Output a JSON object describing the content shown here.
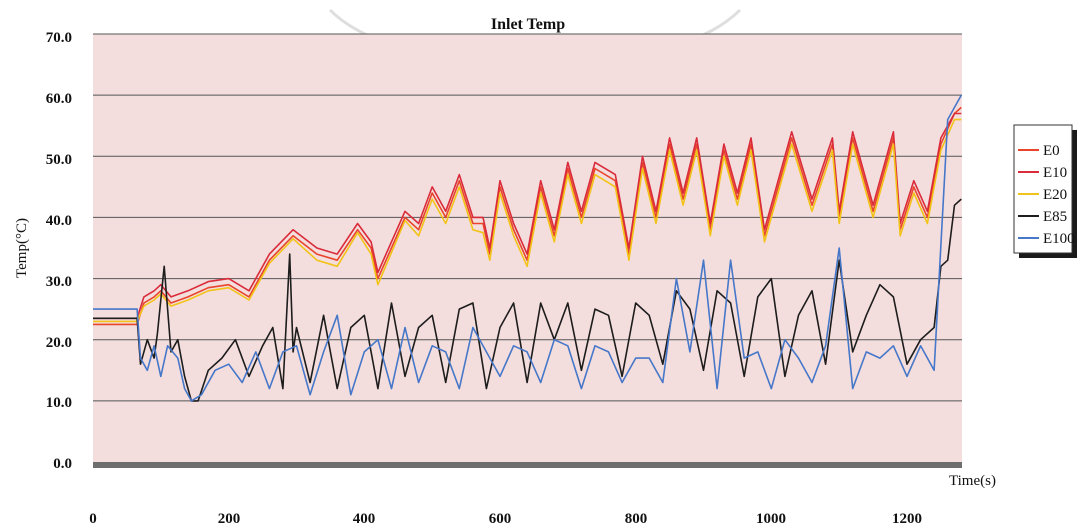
{
  "colors": {
    "plot_bg": "#f4dedd",
    "grid": "#555555",
    "baseline": "#6e6e6e",
    "E0": "#e8452c",
    "E10": "#d92b3a",
    "E20": "#f2c318",
    "E85": "#1d1d1d",
    "E100": "#4677c9"
  },
  "chart_data": {
    "type": "line",
    "title": "Inlet Temp",
    "xlabel": "Time(s)",
    "ylabel": "Temp(°C)",
    "xlim": [
      0,
      1280
    ],
    "ylim": [
      0,
      70
    ],
    "x_ticks": [
      "0",
      "200",
      "400",
      "600",
      "800",
      "1000",
      "1200"
    ],
    "y_ticks": [
      "0.0",
      "10.0",
      "20.0",
      "30.0",
      "40.0",
      "50.0",
      "60.0",
      "70.0"
    ],
    "grid": "horizontal",
    "legend": "right",
    "series": [
      {
        "name": "E0",
        "x": [
          0,
          65,
          75,
          90,
          100,
          115,
          140,
          170,
          200,
          230,
          260,
          295,
          330,
          360,
          390,
          410,
          420,
          460,
          480,
          500,
          520,
          540,
          560,
          575,
          585,
          600,
          620,
          640,
          660,
          680,
          700,
          720,
          740,
          770,
          790,
          810,
          830,
          850,
          870,
          890,
          910,
          930,
          950,
          970,
          990,
          1010,
          1030,
          1060,
          1090,
          1100,
          1120,
          1150,
          1180,
          1190,
          1210,
          1230,
          1250,
          1270,
          1280
        ],
        "values": [
          22.5,
          22.5,
          26,
          27,
          28,
          26,
          27,
          28.5,
          29,
          27,
          33,
          37,
          34,
          33,
          38,
          35,
          30,
          40,
          38,
          44,
          40,
          46,
          39,
          39,
          34,
          45,
          38,
          33,
          45,
          37,
          48,
          40,
          48,
          46,
          34,
          49,
          40,
          52,
          43,
          52,
          38,
          51,
          43,
          52,
          37,
          45,
          53,
          42,
          52,
          40,
          53,
          41,
          53,
          38,
          45,
          40,
          52,
          57,
          58
        ]
      },
      {
        "name": "E10",
        "x": [
          0,
          65,
          75,
          90,
          100,
          115,
          140,
          170,
          200,
          230,
          260,
          295,
          330,
          360,
          390,
          410,
          420,
          460,
          480,
          500,
          520,
          540,
          560,
          575,
          585,
          600,
          620,
          640,
          660,
          680,
          700,
          720,
          740,
          770,
          790,
          810,
          830,
          850,
          870,
          890,
          910,
          930,
          950,
          970,
          990,
          1010,
          1030,
          1060,
          1090,
          1100,
          1120,
          1150,
          1180,
          1190,
          1210,
          1230,
          1250,
          1270,
          1280
        ],
        "values": [
          23.5,
          23.5,
          27,
          28,
          29,
          27,
          28,
          29.5,
          30,
          28,
          34,
          38,
          35,
          34,
          39,
          36,
          31,
          41,
          39,
          45,
          41,
          47,
          40,
          40,
          35,
          46,
          39,
          34,
          46,
          38,
          49,
          41,
          49,
          47,
          35,
          50,
          41,
          53,
          44,
          53,
          39,
          52,
          44,
          53,
          38,
          46,
          54,
          43,
          53,
          41,
          54,
          42,
          54,
          39,
          46,
          41,
          53,
          57,
          57
        ]
      },
      {
        "name": "E20",
        "x": [
          0,
          65,
          75,
          90,
          100,
          115,
          140,
          170,
          200,
          230,
          260,
          295,
          330,
          360,
          390,
          410,
          420,
          460,
          480,
          500,
          520,
          540,
          560,
          575,
          585,
          600,
          620,
          640,
          660,
          680,
          700,
          720,
          740,
          770,
          790,
          810,
          830,
          850,
          870,
          890,
          910,
          930,
          950,
          970,
          990,
          1010,
          1030,
          1060,
          1090,
          1100,
          1120,
          1150,
          1180,
          1190,
          1210,
          1230,
          1250,
          1270,
          1280
        ],
        "values": [
          23.0,
          23.0,
          25.5,
          26.5,
          27.5,
          25.5,
          26.5,
          28,
          28.5,
          26.5,
          32.5,
          36.5,
          33,
          32,
          37.5,
          34,
          29,
          39.5,
          37,
          43,
          39,
          45,
          38,
          37.5,
          33,
          44,
          37,
          32,
          44,
          36,
          47,
          39,
          47,
          45,
          33,
          48,
          39,
          51,
          42,
          51,
          37,
          50,
          42,
          51,
          36,
          44,
          52,
          41,
          51,
          39,
          52,
          40,
          52,
          37,
          44,
          39,
          51,
          56,
          56
        ]
      },
      {
        "name": "E85",
        "x": [
          0,
          65,
          70,
          80,
          90,
          95,
          105,
          115,
          125,
          135,
          145,
          155,
          170,
          190,
          210,
          230,
          250,
          265,
          280,
          290,
          295,
          300,
          320,
          340,
          360,
          380,
          400,
          420,
          440,
          460,
          480,
          500,
          520,
          540,
          560,
          580,
          600,
          620,
          640,
          660,
          680,
          700,
          720,
          740,
          760,
          780,
          800,
          820,
          840,
          860,
          880,
          900,
          920,
          940,
          960,
          980,
          1000,
          1020,
          1040,
          1060,
          1080,
          1100,
          1120,
          1140,
          1160,
          1180,
          1200,
          1220,
          1240,
          1250,
          1260,
          1270,
          1280
        ],
        "values": [
          23.5,
          23.5,
          16,
          20,
          17,
          21,
          32,
          18,
          20,
          14,
          10,
          10,
          15,
          17,
          20,
          14,
          19,
          22,
          12,
          34,
          18,
          22,
          13,
          24,
          12,
          22,
          24,
          12,
          26,
          14,
          22,
          24,
          13,
          25,
          26,
          12,
          22,
          26,
          13,
          26,
          20,
          26,
          15,
          25,
          24,
          14,
          26,
          24,
          16,
          28,
          25,
          15,
          28,
          26,
          14,
          27,
          30,
          14,
          24,
          28,
          16,
          33,
          18,
          24,
          29,
          27,
          16,
          20,
          22,
          32,
          33,
          42,
          43
        ]
      },
      {
        "name": "E100",
        "x": [
          0,
          65,
          70,
          80,
          90,
          100,
          110,
          125,
          135,
          145,
          160,
          180,
          200,
          220,
          240,
          260,
          280,
          300,
          320,
          340,
          360,
          380,
          400,
          420,
          440,
          460,
          480,
          500,
          520,
          540,
          560,
          580,
          600,
          620,
          640,
          660,
          680,
          700,
          720,
          740,
          760,
          780,
          800,
          820,
          840,
          860,
          880,
          900,
          920,
          940,
          960,
          980,
          1000,
          1020,
          1040,
          1060,
          1080,
          1100,
          1120,
          1140,
          1160,
          1180,
          1200,
          1220,
          1240,
          1260,
          1270,
          1280
        ],
        "values": [
          25,
          25,
          17,
          15,
          19,
          14,
          19,
          17,
          12,
          10,
          11,
          15,
          16,
          13,
          18,
          12,
          18,
          19,
          11,
          18,
          24,
          11,
          18,
          20,
          12,
          22,
          13,
          19,
          18,
          12,
          22,
          18,
          14,
          19,
          18,
          13,
          20,
          19,
          12,
          19,
          18,
          13,
          17,
          17,
          13,
          30,
          18,
          33,
          12,
          33,
          17,
          18,
          12,
          20,
          17,
          13,
          19,
          35,
          12,
          18,
          17,
          19,
          14,
          19,
          15,
          56,
          58,
          60
        ]
      }
    ]
  }
}
